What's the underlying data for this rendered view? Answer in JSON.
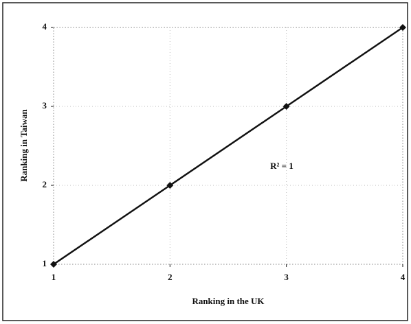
{
  "chart_data": {
    "type": "line",
    "x": [
      1,
      2,
      3,
      4
    ],
    "values": [
      1,
      2,
      3,
      4
    ],
    "color": "#111",
    "xlabel": "Ranking in the UK",
    "ylabel": "Ranking in Taiwan",
    "annotation": "R² = 1",
    "xlim": [
      1,
      4
    ],
    "xticks": [
      1,
      2,
      3,
      4
    ],
    "ylim": [
      1,
      4
    ],
    "yticks": [
      1,
      2,
      3,
      4
    ],
    "grid": true
  }
}
